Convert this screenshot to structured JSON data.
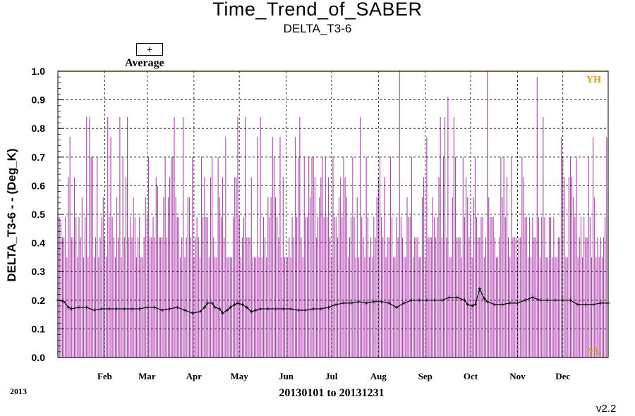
{
  "title": "Time_Trend_of_SABER",
  "subtitle": "DELTA_T3-6",
  "legend": {
    "symbol": "+",
    "label": "Average"
  },
  "year_label": "2013",
  "range_label": "20130101 to 20131231",
  "version": "v2.2",
  "chart_data": {
    "type": "bar",
    "ylabel": "DELTA_T3-6 - - (Deg_K)",
    "ylim": [
      0.0,
      1.0
    ],
    "yticks": [
      "0.0",
      "0.1",
      "0.2",
      "0.3",
      "0.4",
      "0.5",
      "0.6",
      "0.7",
      "0.8",
      "0.9",
      "1.0"
    ],
    "xlim_days": [
      1,
      365
    ],
    "month_labels": [
      {
        "label": "Feb",
        "day": 32
      },
      {
        "label": "Mar",
        "day": 60
      },
      {
        "label": "Apr",
        "day": 91
      },
      {
        "label": "May",
        "day": 121
      },
      {
        "label": "Jun",
        "day": 152
      },
      {
        "label": "Jul",
        "day": 182
      },
      {
        "label": "Aug",
        "day": 213
      },
      {
        "label": "Sep",
        "day": 244
      },
      {
        "label": "Oct",
        "day": 274
      },
      {
        "label": "Nov",
        "day": 305
      },
      {
        "label": "Dec",
        "day": 335
      }
    ],
    "limit_lines": [
      {
        "name": "YH",
        "value": 1.0,
        "color": "#d4a017"
      },
      {
        "name": "YL",
        "value": 0.0,
        "color": "#d4a017"
      }
    ],
    "grid": true,
    "bar_color": "#b540b5",
    "average_color": "#000000",
    "series": [
      {
        "name": "Average",
        "x": [
          1,
          5,
          8,
          10,
          15,
          20,
          25,
          30,
          35,
          40,
          45,
          50,
          55,
          60,
          65,
          70,
          75,
          80,
          85,
          90,
          95,
          98,
          100,
          103,
          105,
          108,
          110,
          113,
          115,
          118,
          120,
          123,
          126,
          129,
          132,
          135,
          140,
          145,
          150,
          155,
          160,
          165,
          170,
          175,
          180,
          185,
          190,
          195,
          200,
          205,
          210,
          215,
          220,
          225,
          230,
          235,
          240,
          245,
          250,
          255,
          260,
          265,
          270,
          272,
          275,
          277,
          280,
          283,
          285,
          290,
          295,
          300,
          305,
          310,
          315,
          320,
          325,
          330,
          335,
          340,
          345,
          350,
          355,
          360,
          365
        ],
        "values": [
          0.2,
          0.195,
          0.175,
          0.17,
          0.175,
          0.175,
          0.165,
          0.17,
          0.17,
          0.17,
          0.17,
          0.17,
          0.17,
          0.175,
          0.175,
          0.165,
          0.17,
          0.175,
          0.165,
          0.155,
          0.16,
          0.175,
          0.19,
          0.19,
          0.175,
          0.17,
          0.155,
          0.165,
          0.175,
          0.185,
          0.19,
          0.185,
          0.175,
          0.16,
          0.165,
          0.17,
          0.17,
          0.17,
          0.17,
          0.17,
          0.165,
          0.165,
          0.17,
          0.17,
          0.175,
          0.185,
          0.19,
          0.19,
          0.195,
          0.19,
          0.195,
          0.195,
          0.19,
          0.175,
          0.19,
          0.2,
          0.2,
          0.2,
          0.2,
          0.2,
          0.21,
          0.21,
          0.2,
          0.185,
          0.18,
          0.185,
          0.24,
          0.205,
          0.195,
          0.185,
          0.185,
          0.19,
          0.19,
          0.2,
          0.21,
          0.2,
          0.2,
          0.2,
          0.2,
          0.2,
          0.185,
          0.185,
          0.185,
          0.19,
          0.19
        ]
      }
    ],
    "peaks": [
      {
        "day": 3,
        "value": 0.48
      },
      {
        "day": 9,
        "value": 0.77
      },
      {
        "day": 20,
        "value": 0.84
      },
      {
        "day": 22,
        "value": 0.84
      },
      {
        "day": 34,
        "value": 0.84
      },
      {
        "day": 36,
        "value": 0.77
      },
      {
        "day": 42,
        "value": 0.84
      },
      {
        "day": 47,
        "value": 0.84
      },
      {
        "day": 67,
        "value": 0.6
      },
      {
        "day": 72,
        "value": 0.7
      },
      {
        "day": 75,
        "value": 0.63
      },
      {
        "day": 78,
        "value": 0.84
      },
      {
        "day": 84,
        "value": 0.84
      },
      {
        "day": 107,
        "value": 0.7
      },
      {
        "day": 112,
        "value": 0.77
      },
      {
        "day": 120,
        "value": 0.84
      },
      {
        "day": 125,
        "value": 0.84
      },
      {
        "day": 133,
        "value": 0.77
      },
      {
        "day": 135,
        "value": 0.84
      },
      {
        "day": 143,
        "value": 0.77
      },
      {
        "day": 148,
        "value": 0.77
      },
      {
        "day": 158,
        "value": 0.77
      },
      {
        "day": 161,
        "value": 0.84
      },
      {
        "day": 169,
        "value": 0.7
      },
      {
        "day": 190,
        "value": 0.7
      },
      {
        "day": 201,
        "value": 0.84
      },
      {
        "day": 213,
        "value": 0.63
      },
      {
        "day": 227,
        "value": 1.0
      },
      {
        "day": 245,
        "value": 0.77
      },
      {
        "day": 254,
        "value": 0.84
      },
      {
        "day": 257,
        "value": 0.84
      },
      {
        "day": 259,
        "value": 0.91
      },
      {
        "day": 263,
        "value": 0.84
      },
      {
        "day": 285,
        "value": 1.0
      },
      {
        "day": 301,
        "value": 0.7
      },
      {
        "day": 318,
        "value": 0.98
      },
      {
        "day": 322,
        "value": 0.84
      },
      {
        "day": 334,
        "value": 0.77
      },
      {
        "day": 355,
        "value": 0.77
      },
      {
        "day": 364,
        "value": 0.77
      }
    ]
  }
}
